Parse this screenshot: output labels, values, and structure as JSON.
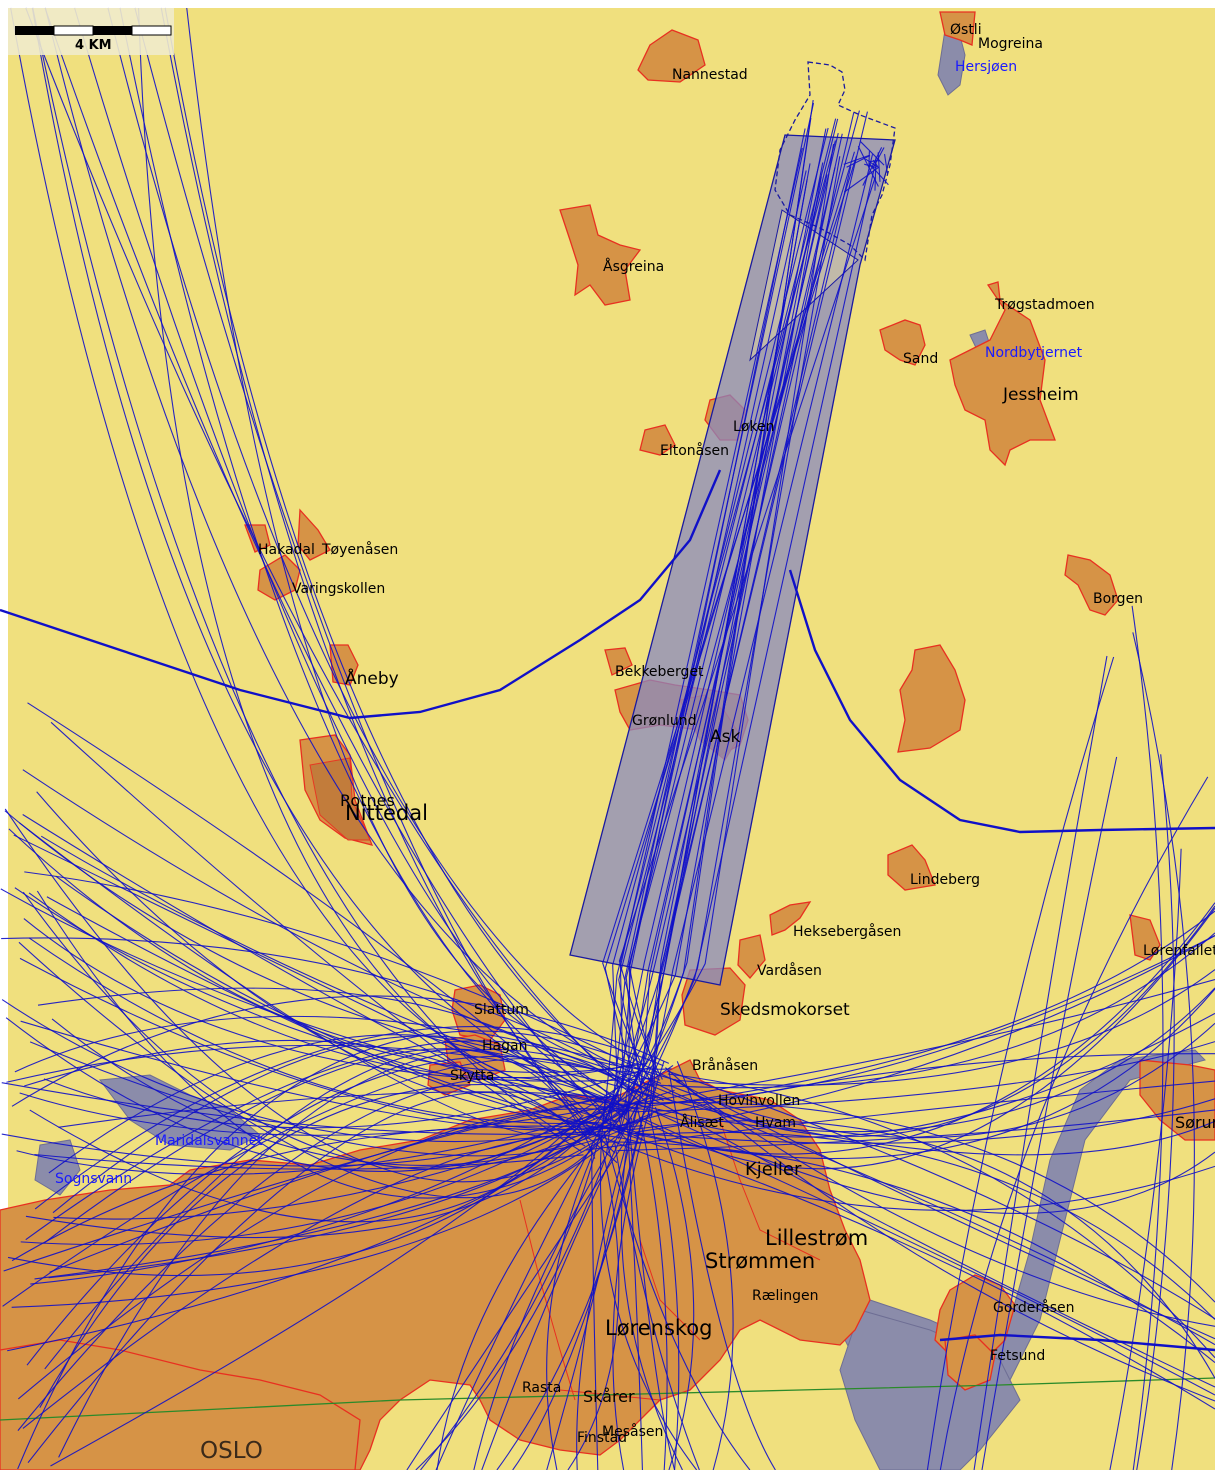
{
  "scale_bar": {
    "label": "4 KM"
  },
  "places": {
    "ostli": "Østli",
    "mogreina": "Mogreina",
    "hersjoen": "Hersjøen",
    "nannestad": "Nannestad",
    "asgreina": "Åsgreina",
    "trogstadmoen": "Trøgstadmoen",
    "nordbytjernet": "Nordbytjernet",
    "sand": "Sand",
    "jessheim": "Jessheim",
    "loken": "Løken",
    "eltonasen": "Eltonåsen",
    "hakadal": "Hakadal",
    "toyenasen": "Tøyenåsen",
    "varingskollen": "Varingskollen",
    "borgen": "Borgen",
    "aneby": "Åneby",
    "bekkeberget": "Bekkeberget",
    "gronlund": "Grønlund",
    "ask": "Ask",
    "rotnes": "Rotnes",
    "nittedal": "Nittedal",
    "lindeberg": "Lindeberg",
    "heksebergasen": "Heksebergåsen",
    "lorenfallet": "Lørenfallet",
    "vardasen": "Vardåsen",
    "skedsmokorset": "Skedsmokorset",
    "slattum": "Slattum",
    "hagan": "Hagan",
    "skytta": "Skytta",
    "branasen": "Brånåsen",
    "hovinvollen": "Hovinvollen",
    "maridalsvannet": "Maridalsvannet",
    "sognsvann": "Sognsvann",
    "sorumsand": "Sørumsand",
    "kjeller": "Kjeller",
    "lillestrom": "Lillestrøm",
    "strommen": "Strømmen",
    "raelingen": "Rælingen",
    "gorderasen": "Gorderåsen",
    "lorenskog": "Lørenskog",
    "fetsund": "Fetsund",
    "rasta": "Rasta",
    "skarer": "Skårer",
    "mesasen": "Mesåsen",
    "finstad": "Finstad",
    "oslo": "OSLO",
    "aliset": "Ålisæt",
    "hvam": "Hvam"
  },
  "colors": {
    "land": "#f0e07e",
    "urban_fill": "#d69346",
    "urban_edge": "#e83020",
    "water": "#8b8caa",
    "water_label": "#1a1aff",
    "flight_track": "#1010c8",
    "corridor": "#8a8ac0",
    "rail_line": "#2a8a2a"
  }
}
